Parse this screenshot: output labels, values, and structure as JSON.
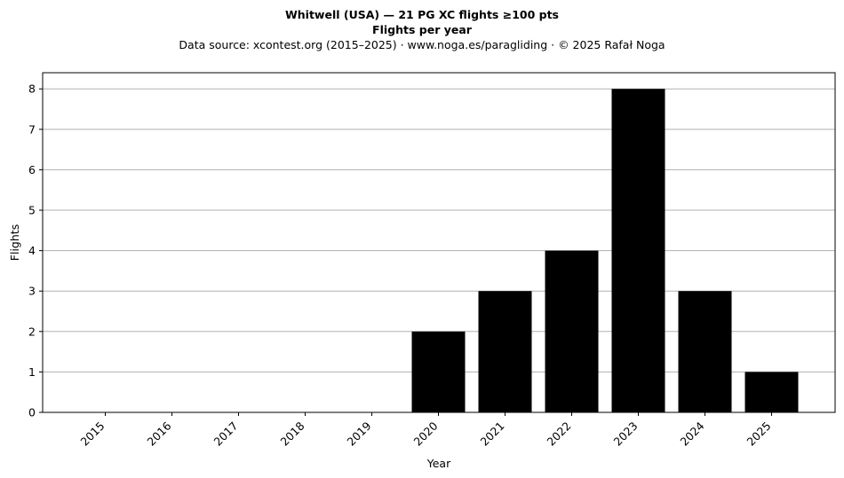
{
  "chart_data": {
    "type": "bar",
    "title": "Whitwell (USA)  —  21 PG XC flights ≥100 pts",
    "subtitle": "Flights per year",
    "source_note": "Data source: xcontest.org (2015–2025)  ·  www.noga.es/paragliding  ·  © 2025 Rafał Noga",
    "xlabel": "Year",
    "ylabel": "Flights",
    "categories": [
      "2015",
      "2016",
      "2017",
      "2018",
      "2019",
      "2020",
      "2021",
      "2022",
      "2023",
      "2024",
      "2025"
    ],
    "values": [
      0,
      0,
      0,
      0,
      0,
      2,
      3,
      4,
      8,
      3,
      1
    ],
    "ylim": [
      0,
      8.4
    ],
    "yticks": [
      0,
      1,
      2,
      3,
      4,
      5,
      6,
      7,
      8
    ],
    "grid": "y",
    "bar_color": "#000000",
    "grid_color": "#b0b0b0"
  }
}
